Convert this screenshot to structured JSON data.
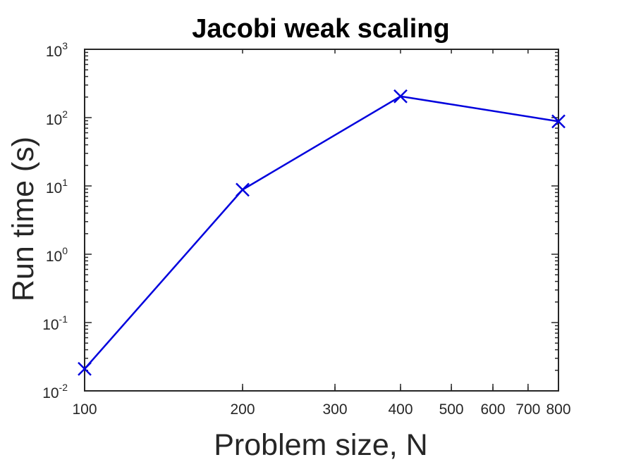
{
  "chart_data": {
    "type": "line",
    "title": "Jacobi weak scaling",
    "xlabel": "Problem size, N",
    "ylabel": "Run time (s)",
    "xscale": "log",
    "yscale": "log",
    "xlim": [
      100,
      800
    ],
    "ylim": [
      0.01,
      1000
    ],
    "grid": false,
    "x_ticks": [
      {
        "value": 100,
        "label": "100"
      },
      {
        "value": 200,
        "label": "200"
      },
      {
        "value": 300,
        "label": "300"
      },
      {
        "value": 400,
        "label": "400"
      },
      {
        "value": 500,
        "label": "500"
      },
      {
        "value": 600,
        "label": "600"
      },
      {
        "value": 700,
        "label": "700"
      },
      {
        "value": 800,
        "label": "800"
      }
    ],
    "y_ticks": [
      {
        "value": 0.01,
        "base": "10",
        "exp": "-2"
      },
      {
        "value": 0.1,
        "base": "10",
        "exp": "-1"
      },
      {
        "value": 1,
        "base": "10",
        "exp": "0"
      },
      {
        "value": 10,
        "base": "10",
        "exp": "1"
      },
      {
        "value": 100,
        "base": "10",
        "exp": "2"
      },
      {
        "value": 1000,
        "base": "10",
        "exp": "3"
      }
    ],
    "series": [
      {
        "color": "#0000DD",
        "marker": "x",
        "x": [
          100,
          200,
          400,
          800
        ],
        "y": [
          0.021,
          8.8,
          205,
          88
        ]
      }
    ]
  }
}
